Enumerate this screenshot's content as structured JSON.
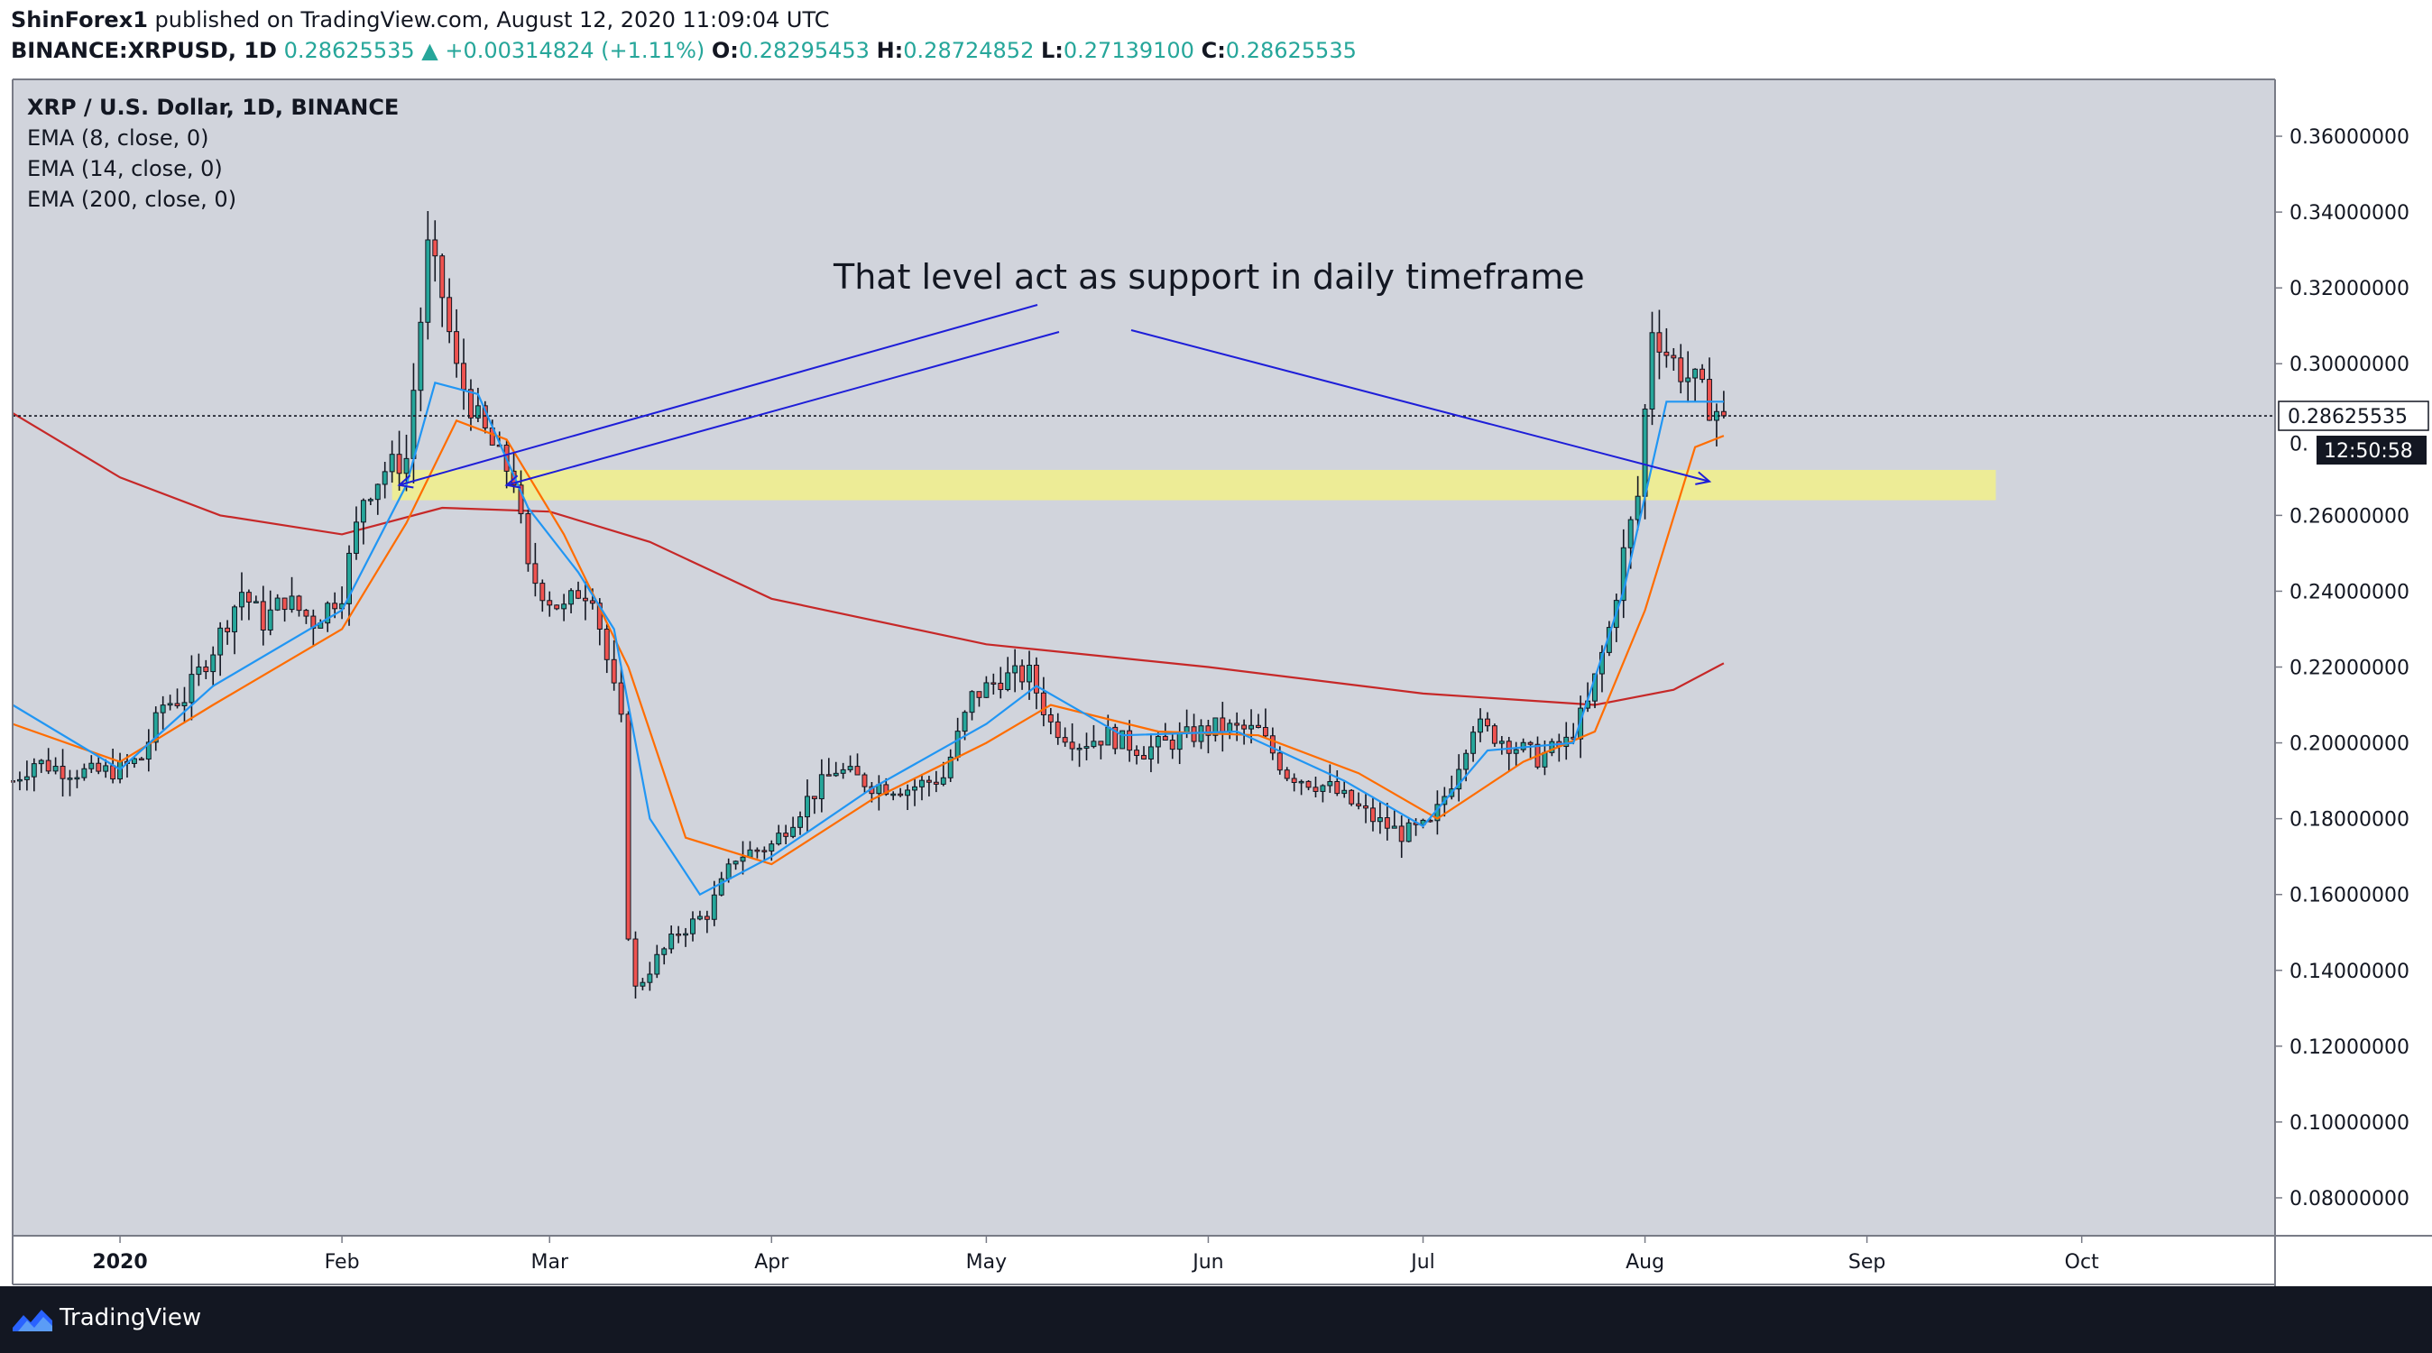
{
  "header": {
    "publisher": "ShinForex1",
    "published_text": "published on TradingView.com, August 12, 2020 11:09:04 UTC",
    "symbol": "BINANCE:XRPUSD, 1D",
    "last_price": "0.28625535",
    "change": "▲ +0.00314824 (+1.11%)",
    "o_label": "O:",
    "o_value": "0.28295453",
    "h_label": "H:",
    "h_value": "0.28724852",
    "l_label": "L:",
    "l_value": "0.27139100",
    "c_label": "C:",
    "c_value": "0.28625535"
  },
  "legend": {
    "title": "XRP / U.S. Dollar, 1D, BINANCE",
    "ema8": "EMA (8, close, 0)",
    "ema14": "EMA (14, close, 0)",
    "ema200": "EMA (200, close, 0)"
  },
  "footer": {
    "brand": "TradingView"
  },
  "colors": {
    "up": "#26a69a",
    "down": "#ef5350",
    "wick": "#131722",
    "ema8": "#2196f3",
    "ema14": "#ff6d00",
    "ema200": "#c62828",
    "zone": "#f2f08a",
    "arrows": "#1e1ed8",
    "plot_bg": "#d1d4dc",
    "price_badge": "#131722"
  },
  "chart_data": {
    "type": "candlestick",
    "ylim": [
      0.07,
      0.375
    ],
    "y_ticks": [
      "0.36000000",
      "0.34000000",
      "0.32000000",
      "0.30000000",
      "0.26000000",
      "0.24000000",
      "0.22000000",
      "0.20000000",
      "0.18000000",
      "0.16000000",
      "0.14000000",
      "0.12000000",
      "0.10000000",
      "0.08000000"
    ],
    "y_tick_values": [
      0.36,
      0.34,
      0.32,
      0.3,
      0.26,
      0.24,
      0.22,
      0.2,
      0.18,
      0.16,
      0.14,
      0.12,
      0.1,
      0.08
    ],
    "current_price": "0.28625535",
    "current_price_value": 0.28625535,
    "current_price_partial": "0.",
    "countdown": "12:50:58",
    "x_labels": [
      "2020",
      "Feb",
      "Mar",
      "Apr",
      "May",
      "Jun",
      "Jul",
      "Aug",
      "Sep",
      "Oct"
    ],
    "x_label_dates": [
      "2020-01-01",
      "2020-02-01",
      "2020-03-01",
      "2020-04-01",
      "2020-05-01",
      "2020-06-01",
      "2020-07-01",
      "2020-08-01",
      "2020-09-01",
      "2020-10-01"
    ],
    "x_range": [
      "2019-12-17",
      "2020-10-28"
    ],
    "support_zone": {
      "from": 0.264,
      "to": 0.272,
      "start": "2020-02-08",
      "end": "2020-09-19"
    },
    "annotation": "That level act as support in daily timeframe",
    "price_path": [
      [
        "2019-12-17",
        0.19
      ],
      [
        "2019-12-20",
        0.195
      ],
      [
        "2019-12-24",
        0.193
      ],
      [
        "2019-12-28",
        0.192
      ],
      [
        "2020-01-01",
        0.193
      ],
      [
        "2020-01-04",
        0.196
      ],
      [
        "2020-01-07",
        0.21
      ],
      [
        "2020-01-10",
        0.212
      ],
      [
        "2020-01-14",
        0.225
      ],
      [
        "2020-01-18",
        0.24
      ],
      [
        "2020-01-21",
        0.232
      ],
      [
        "2020-01-24",
        0.238
      ],
      [
        "2020-01-28",
        0.232
      ],
      [
        "2020-02-01",
        0.24
      ],
      [
        "2020-02-04",
        0.265
      ],
      [
        "2020-02-07",
        0.272
      ],
      [
        "2020-02-10",
        0.275
      ],
      [
        "2020-02-13",
        0.33
      ],
      [
        "2020-02-15",
        0.318
      ],
      [
        "2020-02-17",
        0.298
      ],
      [
        "2020-02-20",
        0.285
      ],
      [
        "2020-02-23",
        0.275
      ],
      [
        "2020-02-25",
        0.27
      ],
      [
        "2020-02-27",
        0.245
      ],
      [
        "2020-03-01",
        0.238
      ],
      [
        "2020-03-03",
        0.235
      ],
      [
        "2020-03-05",
        0.24
      ],
      [
        "2020-03-07",
        0.24
      ],
      [
        "2020-03-09",
        0.222
      ],
      [
        "2020-03-11",
        0.205
      ],
      [
        "2020-03-12",
        0.15
      ],
      [
        "2020-03-13",
        0.135
      ],
      [
        "2020-03-16",
        0.143
      ],
      [
        "2020-03-19",
        0.15
      ],
      [
        "2020-03-23",
        0.155
      ],
      [
        "2020-03-27",
        0.17
      ],
      [
        "2020-04-01",
        0.173
      ],
      [
        "2020-04-06",
        0.185
      ],
      [
        "2020-04-10",
        0.193
      ],
      [
        "2020-04-15",
        0.189
      ],
      [
        "2020-04-20",
        0.188
      ],
      [
        "2020-04-25",
        0.191
      ],
      [
        "2020-04-29",
        0.212
      ],
      [
        "2020-05-03",
        0.217
      ],
      [
        "2020-05-07",
        0.218
      ],
      [
        "2020-05-10",
        0.205
      ],
      [
        "2020-05-14",
        0.2
      ],
      [
        "2020-05-18",
        0.202
      ],
      [
        "2020-05-23",
        0.198
      ],
      [
        "2020-05-28",
        0.201
      ],
      [
        "2020-06-02",
        0.204
      ],
      [
        "2020-06-08",
        0.203
      ],
      [
        "2020-06-12",
        0.192
      ],
      [
        "2020-06-18",
        0.188
      ],
      [
        "2020-06-24",
        0.18
      ],
      [
        "2020-06-28",
        0.176
      ],
      [
        "2020-07-02",
        0.178
      ],
      [
        "2020-07-05",
        0.19
      ],
      [
        "2020-07-08",
        0.205
      ],
      [
        "2020-07-13",
        0.2
      ],
      [
        "2020-07-17",
        0.196
      ],
      [
        "2020-07-21",
        0.2
      ],
      [
        "2020-07-24",
        0.21
      ],
      [
        "2020-07-27",
        0.23
      ],
      [
        "2020-07-29",
        0.25
      ],
      [
        "2020-07-31",
        0.265
      ],
      [
        "2020-08-02",
        0.31
      ],
      [
        "2020-08-04",
        0.303
      ],
      [
        "2020-08-06",
        0.298
      ],
      [
        "2020-08-08",
        0.295
      ],
      [
        "2020-08-10",
        0.289
      ],
      [
        "2020-08-12",
        0.28625535
      ]
    ],
    "ema8_path": [
      [
        "2019-12-17",
        0.21
      ],
      [
        "2020-01-01",
        0.193
      ],
      [
        "2020-01-14",
        0.215
      ],
      [
        "2020-02-01",
        0.235
      ],
      [
        "2020-02-10",
        0.268
      ],
      [
        "2020-02-14",
        0.295
      ],
      [
        "2020-02-20",
        0.292
      ],
      [
        "2020-02-27",
        0.262
      ],
      [
        "2020-03-05",
        0.245
      ],
      [
        "2020-03-10",
        0.23
      ],
      [
        "2020-03-15",
        0.18
      ],
      [
        "2020-03-22",
        0.16
      ],
      [
        "2020-04-01",
        0.17
      ],
      [
        "2020-04-15",
        0.188
      ],
      [
        "2020-05-01",
        0.205
      ],
      [
        "2020-05-08",
        0.215
      ],
      [
        "2020-05-20",
        0.202
      ],
      [
        "2020-06-05",
        0.203
      ],
      [
        "2020-06-20",
        0.19
      ],
      [
        "2020-07-01",
        0.178
      ],
      [
        "2020-07-10",
        0.198
      ],
      [
        "2020-07-22",
        0.2
      ],
      [
        "2020-07-29",
        0.24
      ],
      [
        "2020-08-04",
        0.29
      ],
      [
        "2020-08-12",
        0.29
      ]
    ],
    "ema14_path": [
      [
        "2019-12-17",
        0.205
      ],
      [
        "2020-01-01",
        0.195
      ],
      [
        "2020-01-14",
        0.21
      ],
      [
        "2020-02-01",
        0.23
      ],
      [
        "2020-02-10",
        0.258
      ],
      [
        "2020-02-17",
        0.285
      ],
      [
        "2020-02-24",
        0.28
      ],
      [
        "2020-03-03",
        0.255
      ],
      [
        "2020-03-12",
        0.22
      ],
      [
        "2020-03-20",
        0.175
      ],
      [
        "2020-04-01",
        0.168
      ],
      [
        "2020-04-15",
        0.185
      ],
      [
        "2020-05-01",
        0.2
      ],
      [
        "2020-05-10",
        0.21
      ],
      [
        "2020-05-25",
        0.203
      ],
      [
        "2020-06-08",
        0.202
      ],
      [
        "2020-06-22",
        0.192
      ],
      [
        "2020-07-03",
        0.18
      ],
      [
        "2020-07-15",
        0.195
      ],
      [
        "2020-07-25",
        0.203
      ],
      [
        "2020-08-01",
        0.235
      ],
      [
        "2020-08-08",
        0.278
      ],
      [
        "2020-08-12",
        0.281
      ]
    ],
    "ema200_path": [
      [
        "2019-12-17",
        0.287
      ],
      [
        "2020-01-01",
        0.27
      ],
      [
        "2020-01-15",
        0.26
      ],
      [
        "2020-02-01",
        0.255
      ],
      [
        "2020-02-15",
        0.262
      ],
      [
        "2020-03-01",
        0.261
      ],
      [
        "2020-03-15",
        0.253
      ],
      [
        "2020-04-01",
        0.238
      ],
      [
        "2020-05-01",
        0.226
      ],
      [
        "2020-06-01",
        0.22
      ],
      [
        "2020-07-01",
        0.213
      ],
      [
        "2020-07-25",
        0.21
      ],
      [
        "2020-08-05",
        0.214
      ],
      [
        "2020-08-12",
        0.221
      ]
    ]
  }
}
